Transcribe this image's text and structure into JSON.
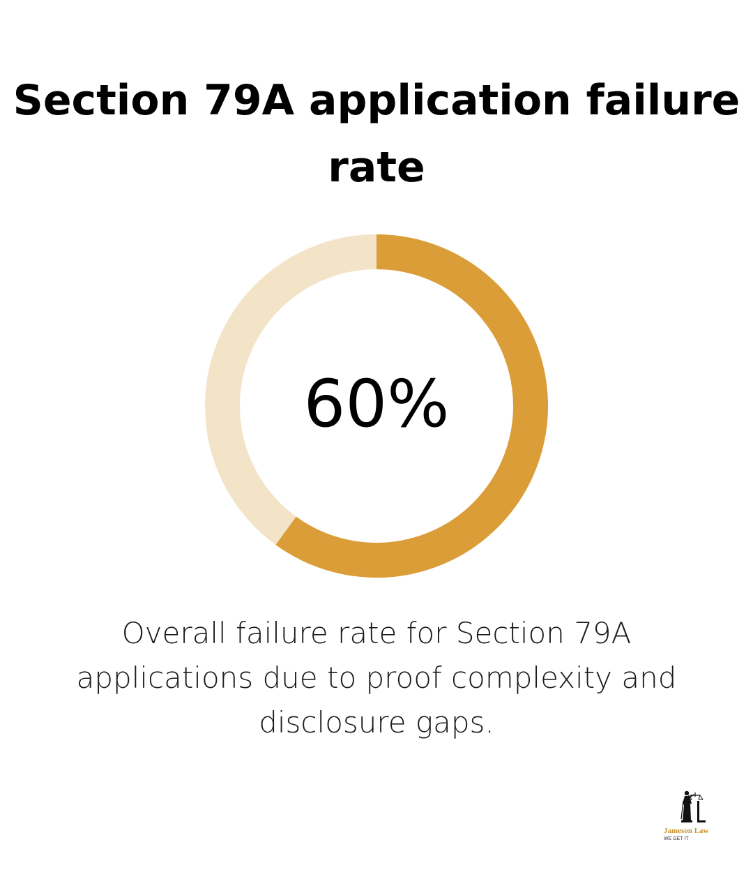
{
  "chart_data": {
    "type": "pie",
    "title": "Section 79A application failure rate",
    "value_percent": 60,
    "center_label": "60%",
    "caption": "Overall failure rate for Section 79A applications due to proof complexity and disclosure gaps.",
    "colors": {
      "filled": "#DA9D38",
      "track": "#F3E4C8"
    }
  },
  "logo": {
    "name": "Jameson Law",
    "tagline": "WE GET IT"
  }
}
